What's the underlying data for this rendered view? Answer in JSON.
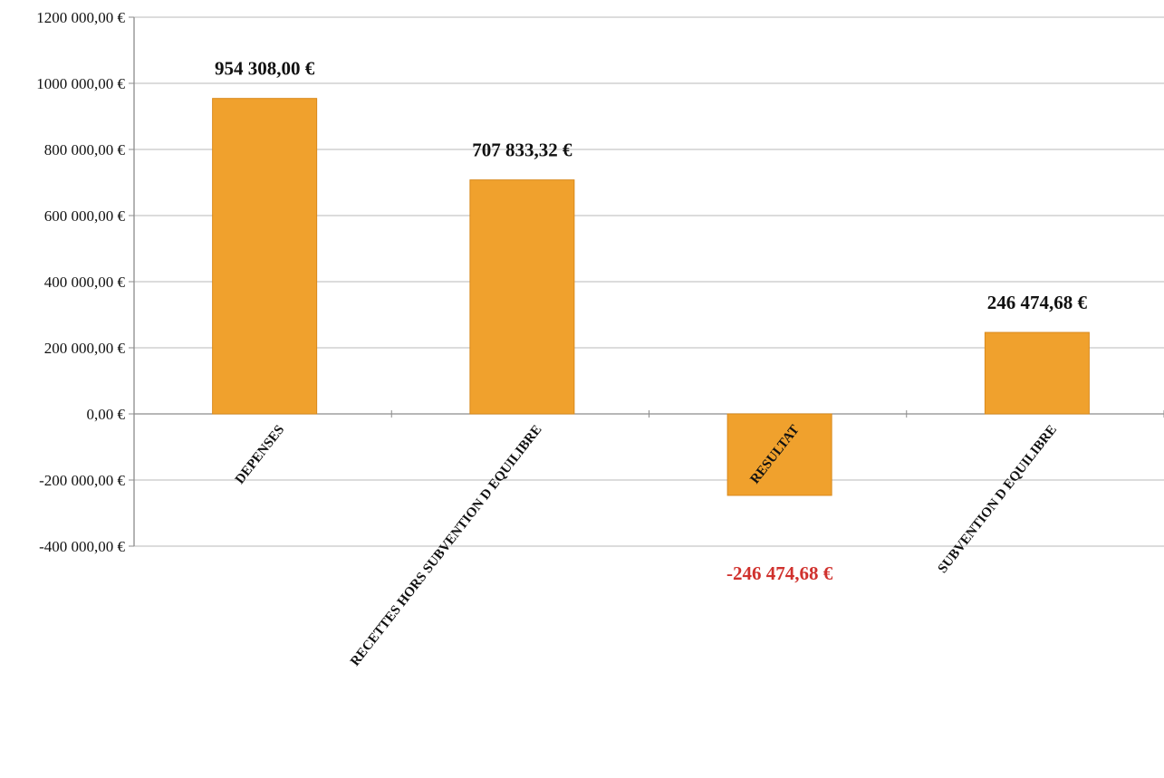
{
  "chart_data": {
    "type": "bar",
    "categories": [
      "DEPENSES",
      "RECETTES HORS SUBVENTION D EQUILIBRE",
      "RESULTAT",
      "SUBVENTION D EQUILIBRE"
    ],
    "values": [
      954308.0,
      707833.32,
      -246474.68,
      246474.68
    ],
    "data_labels": [
      "954 308,00 €",
      "707 833,32 €",
      "-246 474,68 €",
      "246 474,68 €"
    ],
    "y_tick_labels": [
      "1200 000,00 €",
      "1000 000,00 €",
      "800 000,00 €",
      "600 000,00 €",
      "400 000,00 €",
      "200 000,00 €",
      "0,00 €",
      "-200 000,00 €",
      "-400 000,00 €"
    ],
    "y_ticks": [
      1200000,
      1000000,
      800000,
      600000,
      400000,
      200000,
      0,
      -200000,
      -400000
    ],
    "ylim": [
      -400000,
      1200000
    ],
    "title": "",
    "xlabel": "",
    "ylabel": "",
    "grid": true,
    "legend": "none",
    "colors": {
      "bar": "#f0a12d",
      "bar_edge": "#d98a1c",
      "grid": "#b9b9b9",
      "axis": "#8c8c8c",
      "label_text": "#111111",
      "negative_label": "#d0312d"
    }
  }
}
